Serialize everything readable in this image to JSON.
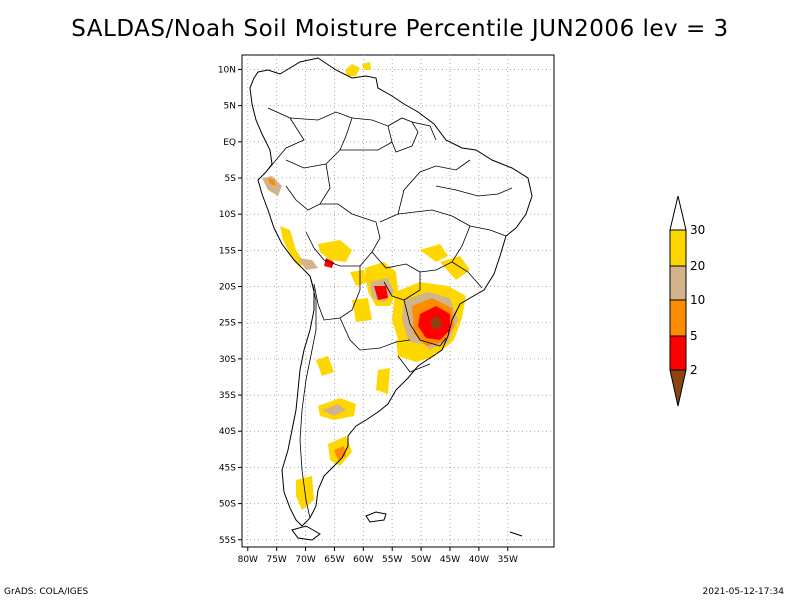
{
  "title": "SALDAS/Noah Soil Moisture Percentile JUN2006 lev = 3",
  "footer": {
    "left": "GrADS: COLA/IGES",
    "right": "2021-05-12-17:34"
  },
  "map": {
    "lat_labels": [
      "10N",
      "5N",
      "EQ",
      "5S",
      "10S",
      "15S",
      "20S",
      "25S",
      "30S",
      "35S",
      "40S",
      "45S",
      "50S",
      "55S"
    ],
    "lon_labels": [
      "80W",
      "75W",
      "70W",
      "65W",
      "60W",
      "55W",
      "50W",
      "45W",
      "40W",
      "35W"
    ],
    "lon_range": [
      -81,
      -27
    ],
    "lat_range": [
      -56,
      12
    ],
    "grid": true
  },
  "legend": {
    "labels": [
      "2",
      "5",
      "10",
      "20",
      "30"
    ],
    "colors": {
      "below_2": "#8b4513",
      "2_5": "#ff0000",
      "5_10": "#ff8c00",
      "10_20": "#d2b48c",
      "20_30": "#ffd700",
      "above_30": "#ffffff"
    }
  }
}
